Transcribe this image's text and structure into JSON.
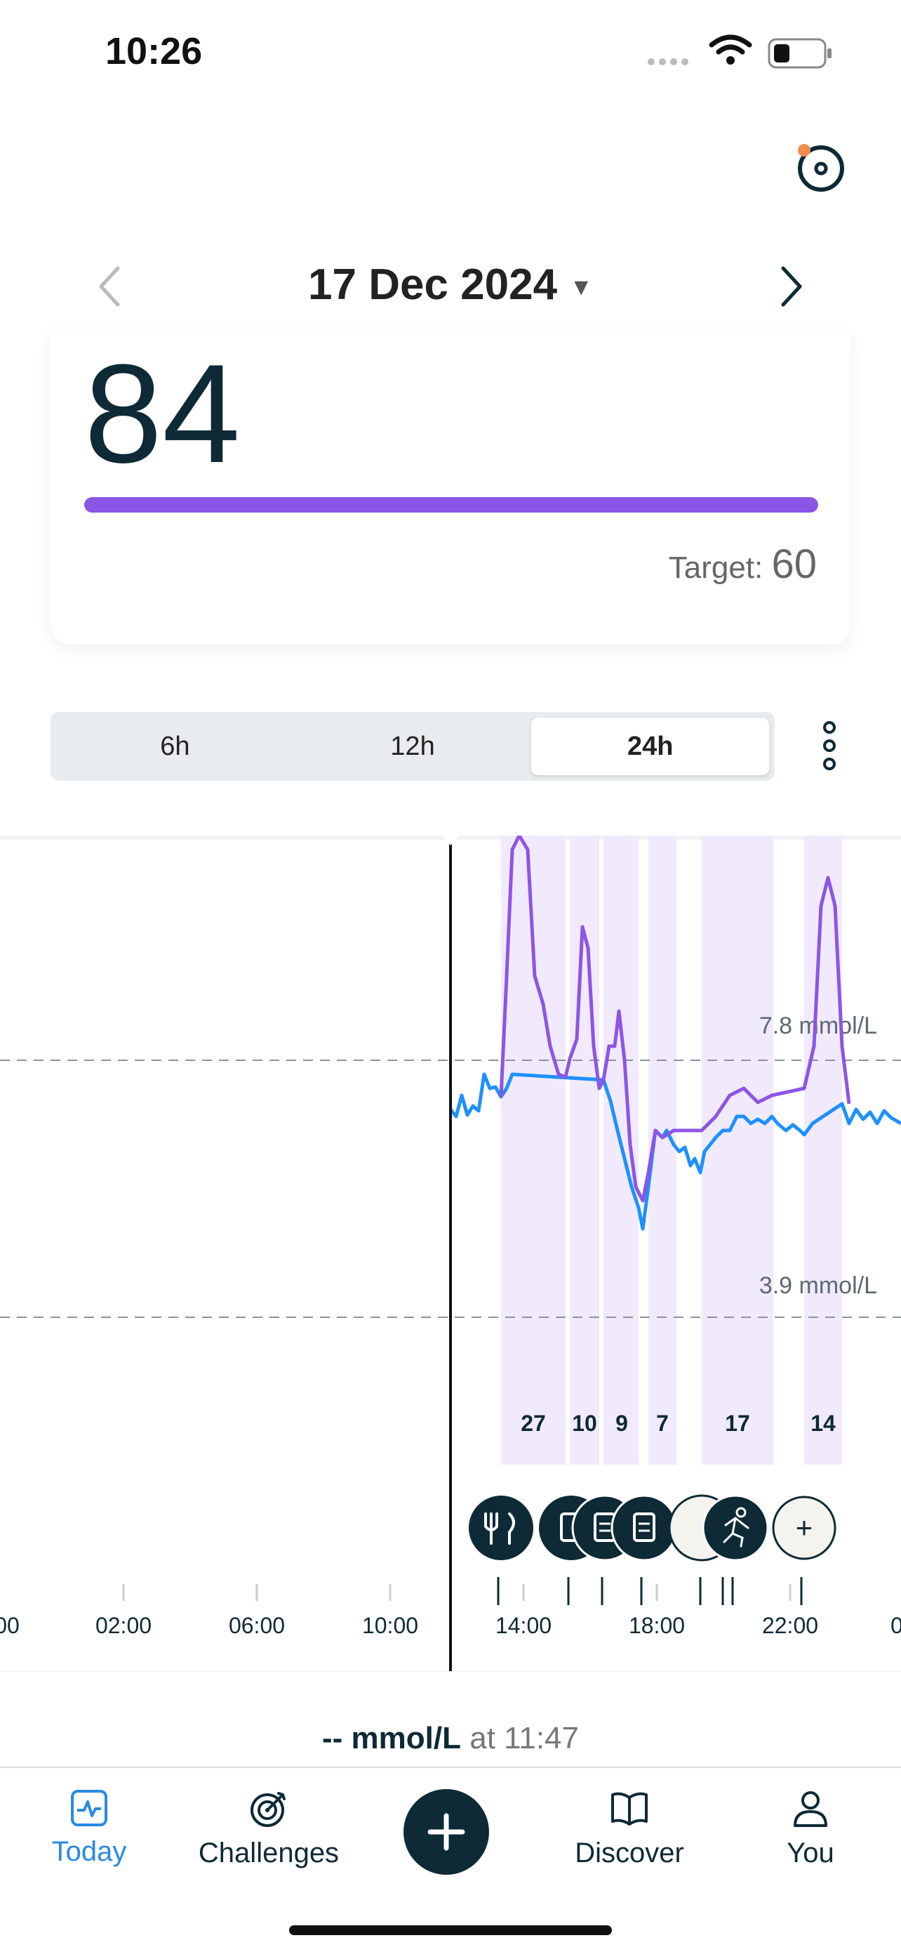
{
  "status_bar": {
    "time": "10:26"
  },
  "header": {
    "date": "17 Dec 2024"
  },
  "score_card": {
    "value": "84",
    "target_label": "Target:",
    "target_value": "60",
    "progress_fraction": 1.0,
    "bar_color": "#8c55e6"
  },
  "range_selector": {
    "options": [
      "6h",
      "12h",
      "24h"
    ],
    "selected": "24h"
  },
  "chart": {
    "reference_lines": [
      {
        "label": "7.8 mmol/L",
        "value": 7.8
      },
      {
        "label": "3.9 mmol/L",
        "value": 3.9
      }
    ],
    "time_ticks": [
      "00",
      "02:00",
      "06:00",
      "10:00",
      "14:00",
      "18:00",
      "22:00",
      "0"
    ],
    "spike_scores": [
      "27",
      "10",
      "9",
      "7",
      "17",
      "14"
    ],
    "event_icons": [
      "fork-knife-icon",
      "clipboard-icon",
      "clipboard-icon",
      "clipboard-icon",
      "runner-icon",
      "plus-icon"
    ],
    "add_event_label": "+",
    "colors": {
      "in_range": "#1e90ff",
      "high": "#8c55e6",
      "highlight": "#f1eafc"
    }
  },
  "readout": {
    "value": "-- mmol/L",
    "at_label": "at 11:47"
  },
  "nav": {
    "items": [
      {
        "label": "Today",
        "active": true
      },
      {
        "label": "Challenges",
        "active": false
      },
      {
        "label": "Discover",
        "active": false
      },
      {
        "label": "You",
        "active": false
      }
    ]
  }
}
